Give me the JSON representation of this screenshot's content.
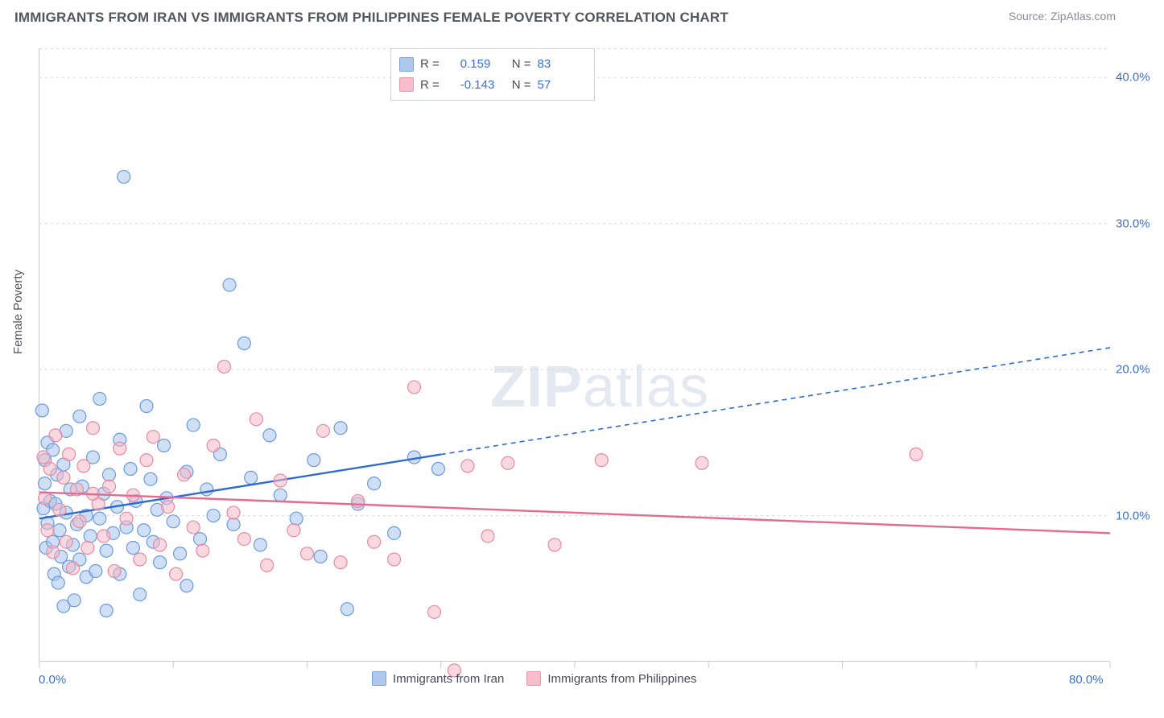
{
  "header": {
    "title": "IMMIGRANTS FROM IRAN VS IMMIGRANTS FROM PHILIPPINES FEMALE POVERTY CORRELATION CHART",
    "source": "Source: ZipAtlas.com"
  },
  "chart": {
    "type": "scatter",
    "ylabel": "Female Poverty",
    "watermark": {
      "bold": "ZIP",
      "rest": "atlas"
    },
    "xlim": [
      0,
      80
    ],
    "ylim": [
      0,
      42
    ],
    "yticks": [
      10,
      20,
      30,
      40
    ],
    "ytick_labels": [
      "10.0%",
      "20.0%",
      "30.0%",
      "40.0%"
    ],
    "xticks_minor": [
      0,
      10,
      20,
      30,
      40,
      50,
      60,
      70,
      80
    ],
    "xtick_labels": {
      "min": "0.0%",
      "max": "80.0%"
    },
    "grid_color": "#d8d8df",
    "axis_color": "#c9c9d2",
    "tick_label_color": "#3a6fd8",
    "background_color": "#ffffff",
    "series": {
      "iran": {
        "label": "Immigrants from Iran",
        "fill": "#a7c4ec",
        "fill_opacity": 0.55,
        "stroke": "#6a9ae0",
        "line_color": "#2d6bd1",
        "marker_r": 8,
        "R": "0.159",
        "N": "83",
        "trend": {
          "x1": 0,
          "y1": 9.8,
          "x2": 80,
          "y2": 21.5,
          "solid_until_x": 30
        },
        "points": [
          [
            0.2,
            17.2
          ],
          [
            0.3,
            10.5
          ],
          [
            0.4,
            13.8
          ],
          [
            0.4,
            12.2
          ],
          [
            0.5,
            7.8
          ],
          [
            0.6,
            15.0
          ],
          [
            0.6,
            9.5
          ],
          [
            0.8,
            11.0
          ],
          [
            1.0,
            8.2
          ],
          [
            1.0,
            14.5
          ],
          [
            1.1,
            6.0
          ],
          [
            1.2,
            10.8
          ],
          [
            1.3,
            12.8
          ],
          [
            1.4,
            5.4
          ],
          [
            1.5,
            9.0
          ],
          [
            1.6,
            7.2
          ],
          [
            1.8,
            13.5
          ],
          [
            1.8,
            3.8
          ],
          [
            2.0,
            10.2
          ],
          [
            2.0,
            15.8
          ],
          [
            2.2,
            6.5
          ],
          [
            2.3,
            11.8
          ],
          [
            2.5,
            8.0
          ],
          [
            2.6,
            4.2
          ],
          [
            2.8,
            9.4
          ],
          [
            3.0,
            7.0
          ],
          [
            3.0,
            16.8
          ],
          [
            3.2,
            12.0
          ],
          [
            3.5,
            5.8
          ],
          [
            3.5,
            10.0
          ],
          [
            3.8,
            8.6
          ],
          [
            4.0,
            14.0
          ],
          [
            4.2,
            6.2
          ],
          [
            4.5,
            18.0
          ],
          [
            4.5,
            9.8
          ],
          [
            4.8,
            11.5
          ],
          [
            5.0,
            7.6
          ],
          [
            5.0,
            3.5
          ],
          [
            5.2,
            12.8
          ],
          [
            5.5,
            8.8
          ],
          [
            5.8,
            10.6
          ],
          [
            6.0,
            15.2
          ],
          [
            6.0,
            6.0
          ],
          [
            6.3,
            33.2
          ],
          [
            6.5,
            9.2
          ],
          [
            6.8,
            13.2
          ],
          [
            7.0,
            7.8
          ],
          [
            7.2,
            11.0
          ],
          [
            7.5,
            4.6
          ],
          [
            7.8,
            9.0
          ],
          [
            8.0,
            17.5
          ],
          [
            8.3,
            12.5
          ],
          [
            8.5,
            8.2
          ],
          [
            8.8,
            10.4
          ],
          [
            9.0,
            6.8
          ],
          [
            9.3,
            14.8
          ],
          [
            9.5,
            11.2
          ],
          [
            10.0,
            9.6
          ],
          [
            10.5,
            7.4
          ],
          [
            11.0,
            13.0
          ],
          [
            11.0,
            5.2
          ],
          [
            11.5,
            16.2
          ],
          [
            12.0,
            8.4
          ],
          [
            12.5,
            11.8
          ],
          [
            13.0,
            10.0
          ],
          [
            13.5,
            14.2
          ],
          [
            14.2,
            25.8
          ],
          [
            14.5,
            9.4
          ],
          [
            15.3,
            21.8
          ],
          [
            15.8,
            12.6
          ],
          [
            16.5,
            8.0
          ],
          [
            17.2,
            15.5
          ],
          [
            18.0,
            11.4
          ],
          [
            19.2,
            9.8
          ],
          [
            20.5,
            13.8
          ],
          [
            21.0,
            7.2
          ],
          [
            22.5,
            16.0
          ],
          [
            23.0,
            3.6
          ],
          [
            23.8,
            10.8
          ],
          [
            25.0,
            12.2
          ],
          [
            26.5,
            8.8
          ],
          [
            28.0,
            14.0
          ],
          [
            29.8,
            13.2
          ]
        ]
      },
      "philippines": {
        "label": "Immigrants from Philippines",
        "fill": "#f4b8c5",
        "fill_opacity": 0.55,
        "stroke": "#ea8aa2",
        "line_color": "#e66a8e",
        "marker_r": 8,
        "R": "-0.143",
        "N": "57",
        "trend": {
          "x1": 0,
          "y1": 11.6,
          "x2": 80,
          "y2": 8.8,
          "solid_until_x": 80
        },
        "points": [
          [
            0.3,
            14.0
          ],
          [
            0.4,
            11.2
          ],
          [
            0.6,
            9.0
          ],
          [
            0.8,
            13.2
          ],
          [
            1.0,
            7.5
          ],
          [
            1.2,
            15.5
          ],
          [
            1.5,
            10.4
          ],
          [
            1.8,
            12.6
          ],
          [
            2.0,
            8.2
          ],
          [
            2.2,
            14.2
          ],
          [
            2.5,
            6.4
          ],
          [
            2.8,
            11.8
          ],
          [
            3.0,
            9.6
          ],
          [
            3.3,
            13.4
          ],
          [
            3.6,
            7.8
          ],
          [
            4.0,
            16.0
          ],
          [
            4.4,
            10.8
          ],
          [
            4.8,
            8.6
          ],
          [
            5.2,
            12.0
          ],
          [
            5.6,
            6.2
          ],
          [
            6.0,
            14.6
          ],
          [
            6.5,
            9.8
          ],
          [
            7.0,
            11.4
          ],
          [
            7.5,
            7.0
          ],
          [
            8.0,
            13.8
          ],
          [
            8.5,
            15.4
          ],
          [
            9.0,
            8.0
          ],
          [
            9.6,
            10.6
          ],
          [
            10.2,
            6.0
          ],
          [
            10.8,
            12.8
          ],
          [
            11.5,
            9.2
          ],
          [
            12.2,
            7.6
          ],
          [
            13.0,
            14.8
          ],
          [
            13.8,
            20.2
          ],
          [
            14.5,
            10.2
          ],
          [
            15.3,
            8.4
          ],
          [
            16.2,
            16.6
          ],
          [
            17.0,
            6.6
          ],
          [
            18.0,
            12.4
          ],
          [
            19.0,
            9.0
          ],
          [
            20.0,
            7.4
          ],
          [
            21.2,
            15.8
          ],
          [
            22.5,
            6.8
          ],
          [
            23.8,
            11.0
          ],
          [
            25.0,
            8.2
          ],
          [
            26.5,
            7.0
          ],
          [
            28.0,
            18.8
          ],
          [
            29.5,
            3.4
          ],
          [
            31.0,
            -0.6
          ],
          [
            32.0,
            13.4
          ],
          [
            33.5,
            8.6
          ],
          [
            35.0,
            13.6
          ],
          [
            38.5,
            8.0
          ],
          [
            42.0,
            13.8
          ],
          [
            49.5,
            13.6
          ],
          [
            65.5,
            14.2
          ],
          [
            4.0,
            11.5
          ]
        ]
      }
    },
    "stats_legend": {
      "R_label": "R =",
      "N_label": "N ="
    },
    "fontsize": {
      "title": 17,
      "axis_label": 15,
      "tick": 15,
      "legend": 15,
      "watermark": 72
    }
  }
}
